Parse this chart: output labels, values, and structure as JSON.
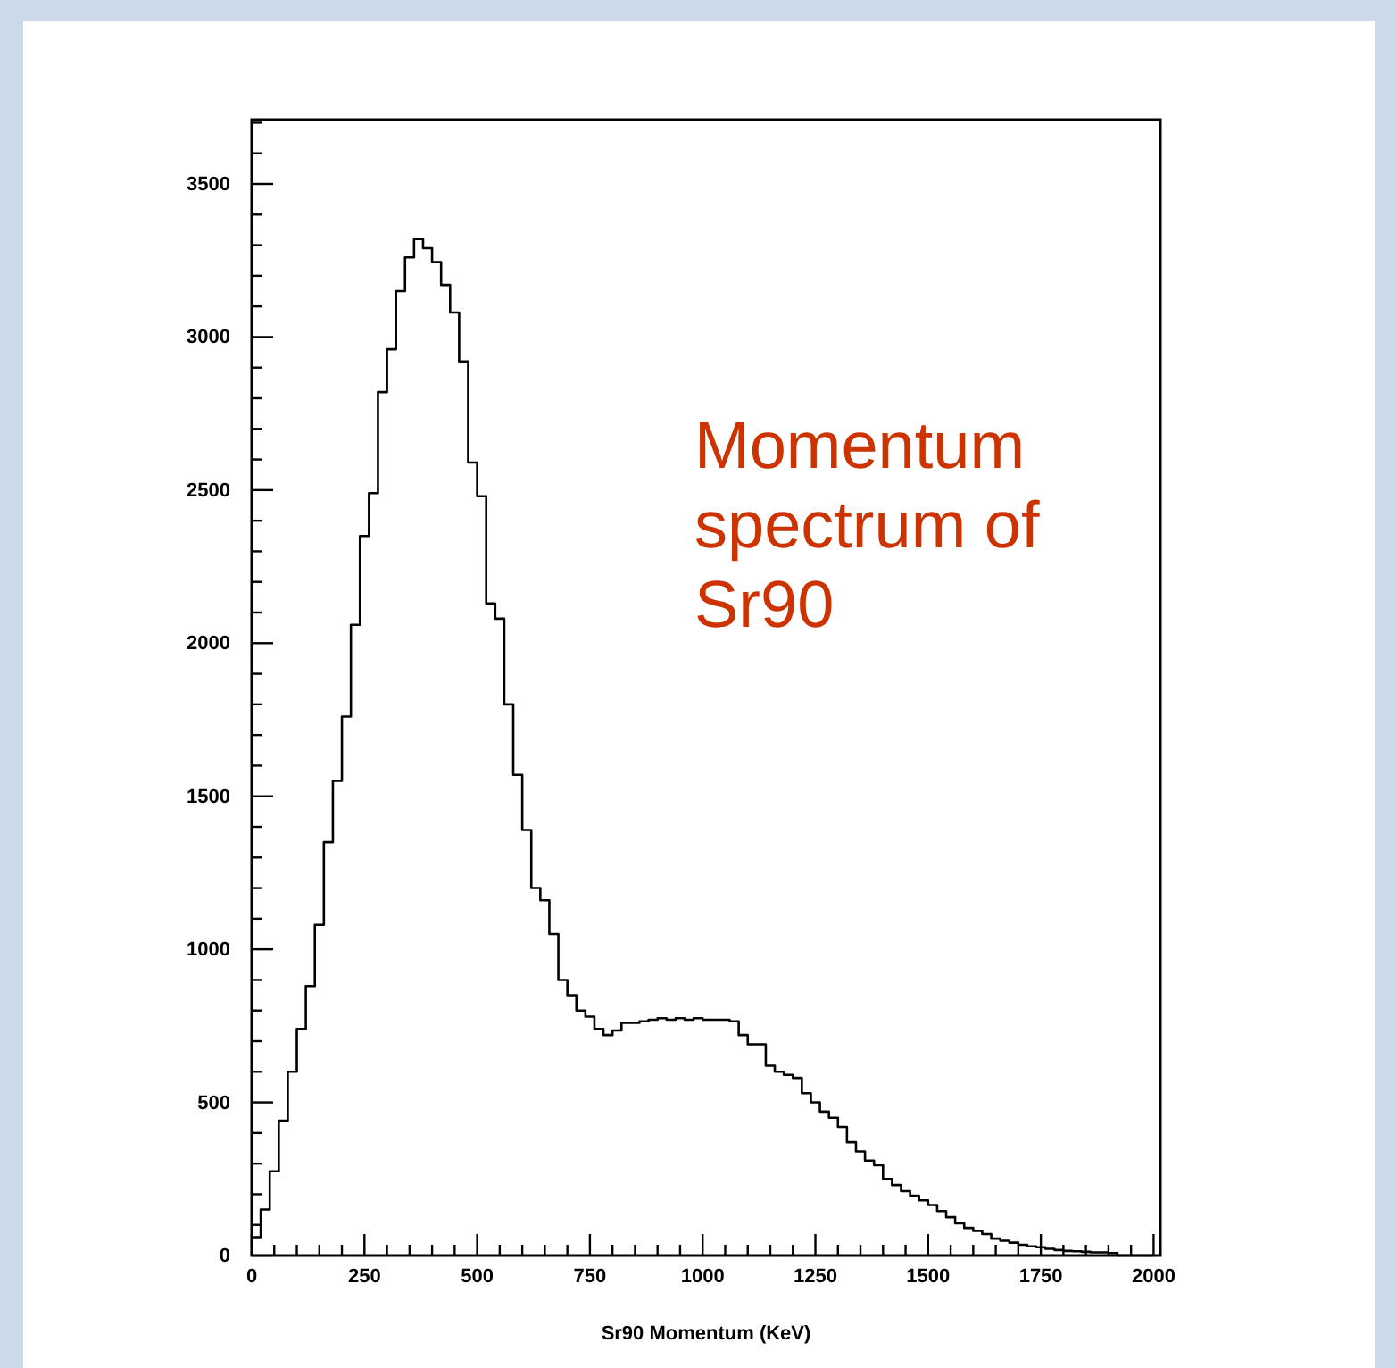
{
  "chart_data": {
    "type": "histogram",
    "xlabel": "Sr90 Momentum (KeV)",
    "annotations": [
      "Momentum spectrum of Sr90"
    ],
    "color": "#000000",
    "bins": [
      0,
      20,
      40,
      60,
      80,
      100,
      120,
      140,
      160,
      180,
      200,
      220,
      240,
      260,
      280,
      300,
      320,
      340,
      360,
      380,
      400,
      420,
      440,
      460,
      480,
      500,
      520,
      540,
      560,
      580,
      600,
      620,
      640,
      660,
      680,
      700,
      720,
      740,
      760,
      780,
      800,
      820,
      840,
      860,
      880,
      900,
      920,
      940,
      960,
      980,
      1000,
      1020,
      1040,
      1060,
      1080,
      1100,
      1120,
      1140,
      1160,
      1180,
      1200,
      1220,
      1240,
      1260,
      1280,
      1300,
      1320,
      1340,
      1360,
      1380,
      1400,
      1420,
      1440,
      1460,
      1480,
      1500,
      1520,
      1540,
      1560,
      1580,
      1600,
      1620,
      1640,
      1660,
      1680,
      1700,
      1720,
      1740,
      1760,
      1780,
      1800,
      1820,
      1840,
      1860,
      1880,
      1900,
      1920,
      1940,
      1960,
      1980,
      2000
    ],
    "values": [
      60,
      150,
      275,
      440,
      600,
      740,
      880,
      1080,
      1350,
      1550,
      1760,
      2060,
      2350,
      2490,
      2820,
      2960,
      3150,
      3260,
      3320,
      3290,
      3245,
      3170,
      3080,
      2920,
      2590,
      2480,
      2130,
      2080,
      1800,
      1570,
      1390,
      1200,
      1160,
      1050,
      900,
      850,
      800,
      780,
      740,
      720,
      735,
      760,
      760,
      765,
      770,
      775,
      770,
      775,
      770,
      775,
      770,
      770,
      770,
      765,
      720,
      690,
      690,
      620,
      600,
      590,
      580,
      530,
      500,
      470,
      450,
      420,
      370,
      340,
      310,
      295,
      250,
      230,
      210,
      195,
      180,
      165,
      145,
      125,
      105,
      90,
      80,
      70,
      55,
      48,
      42,
      35,
      30,
      27,
      22,
      18,
      15,
      14,
      12,
      10,
      10,
      8,
      0,
      0,
      0,
      0
    ],
    "xlim": [
      0,
      2015
    ],
    "ylim": [
      0,
      3710
    ],
    "xticks": [
      0,
      {
        "value": 50,
        "label": null
      },
      {
        "value": 100,
        "label": null
      },
      {
        "value": 150,
        "label": null
      },
      {
        "value": 200,
        "label": null
      },
      250,
      {
        "value": 300,
        "label": null
      },
      {
        "value": 350,
        "label": null
      },
      {
        "value": 400,
        "label": null
      },
      {
        "value": 450,
        "label": null
      },
      500,
      {
        "value": 550,
        "label": null
      },
      {
        "value": 600,
        "label": null
      },
      {
        "value": 650,
        "label": null
      },
      {
        "value": 700,
        "label": null
      },
      750,
      {
        "value": 800,
        "label": null
      },
      {
        "value": 850,
        "label": null
      },
      {
        "value": 900,
        "label": null
      },
      {
        "value": 950,
        "label": null
      },
      1000,
      {
        "value": 1050,
        "label": null
      },
      {
        "value": 1100,
        "label": null
      },
      {
        "value": 1150,
        "label": null
      },
      {
        "value": 1200,
        "label": null
      },
      1250,
      {
        "value": 1300,
        "label": null
      },
      {
        "value": 1350,
        "label": null
      },
      {
        "value": 1400,
        "label": null
      },
      {
        "value": 1450,
        "label": null
      },
      1500,
      {
        "value": 1550,
        "label": null
      },
      {
        "value": 1600,
        "label": null
      },
      {
        "value": 1650,
        "label": null
      },
      {
        "value": 1700,
        "label": null
      },
      1750,
      {
        "value": 1800,
        "label": null
      },
      {
        "value": 1850,
        "label": null
      },
      {
        "value": 1900,
        "label": null
      },
      {
        "value": 1950,
        "label": null
      },
      2000
    ],
    "yticks": [
      0,
      {
        "value": 100,
        "label": null
      },
      {
        "value": 200,
        "label": null
      },
      {
        "value": 300,
        "label": null
      },
      {
        "value": 400,
        "label": null
      },
      500,
      {
        "value": 600,
        "label": null
      },
      {
        "value": 700,
        "label": null
      },
      {
        "value": 800,
        "label": null
      },
      {
        "value": 900,
        "label": null
      },
      1000,
      {
        "value": 1100,
        "label": null
      },
      {
        "value": 1200,
        "label": null
      },
      {
        "value": 1300,
        "label": null
      },
      {
        "value": 1400,
        "label": null
      },
      1500,
      {
        "value": 1600,
        "label": null
      },
      {
        "value": 1700,
        "label": null
      },
      {
        "value": 1800,
        "label": null
      },
      {
        "value": 1900,
        "label": null
      },
      2000,
      {
        "value": 2100,
        "label": null
      },
      {
        "value": 2200,
        "label": null
      },
      {
        "value": 2300,
        "label": null
      },
      {
        "value": 2400,
        "label": null
      },
      2500,
      {
        "value": 2600,
        "label": null
      },
      {
        "value": 2700,
        "label": null
      },
      {
        "value": 2800,
        "label": null
      },
      {
        "value": 2900,
        "label": null
      },
      3000,
      {
        "value": 3100,
        "label": null
      },
      {
        "value": 3200,
        "label": null
      },
      {
        "value": 3300,
        "label": null
      },
      {
        "value": 3400,
        "label": null
      },
      3500,
      {
        "value": 3600,
        "label": null
      },
      {
        "value": 3700,
        "label": null
      }
    ]
  }
}
